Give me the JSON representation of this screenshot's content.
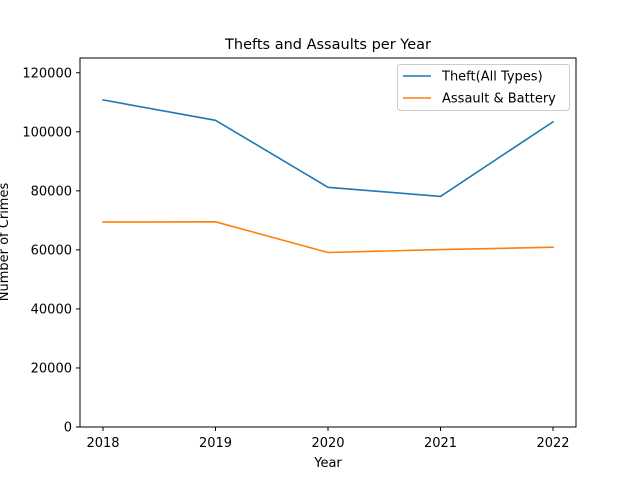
{
  "chart_data": {
    "type": "line",
    "title": "Thefts and Assaults per Year",
    "xlabel": "Year",
    "ylabel": "Number of Crimes",
    "categories": [
      "2018",
      "2019",
      "2020",
      "2021",
      "2022"
    ],
    "yticks": [
      0,
      20000,
      40000,
      60000,
      80000,
      100000,
      120000
    ],
    "ylim": [
      0,
      125000
    ],
    "grid": false,
    "legend_position": "top-right",
    "series": [
      {
        "name": "Theft(All Types)",
        "color": "#1f77b4",
        "values": [
          110800,
          103900,
          81200,
          78100,
          103400
        ]
      },
      {
        "name": "Assault & Battery",
        "color": "#ff7f0e",
        "values": [
          69400,
          69500,
          59100,
          60100,
          60900
        ]
      }
    ]
  }
}
